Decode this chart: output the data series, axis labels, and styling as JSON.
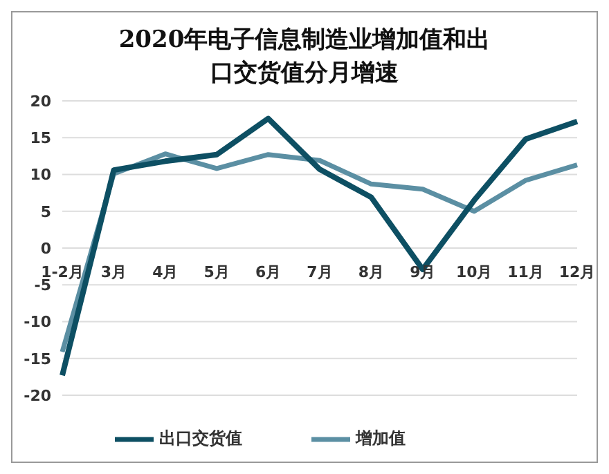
{
  "chart_data": {
    "type": "line",
    "title": "2020年电子信息制造业增加值和出口交货值分月增速",
    "categories": [
      "1-2月",
      "3月",
      "4月",
      "5月",
      "6月",
      "7月",
      "8月",
      "9月",
      "10月",
      "11月",
      "12月"
    ],
    "series": [
      {
        "name": "增加值",
        "color": "#5b8fa3",
        "values": [
          -14.1,
          10.1,
          12.8,
          10.8,
          12.7,
          11.9,
          8.7,
          8.0,
          5.0,
          9.2,
          11.3
        ]
      },
      {
        "name": "出口交货值",
        "color": "#0d4f63",
        "values": [
          -17.3,
          10.6,
          11.8,
          12.7,
          17.6,
          10.7,
          6.9,
          -2.9,
          6.5,
          14.8,
          17.2
        ]
      }
    ],
    "ylim": [
      -20,
      20
    ],
    "yticks": [
      -20,
      -15,
      -10,
      -5,
      0,
      5,
      10,
      15,
      20
    ],
    "grid": "y",
    "legend": "bottom",
    "marker": "none",
    "line_style": "solid"
  }
}
